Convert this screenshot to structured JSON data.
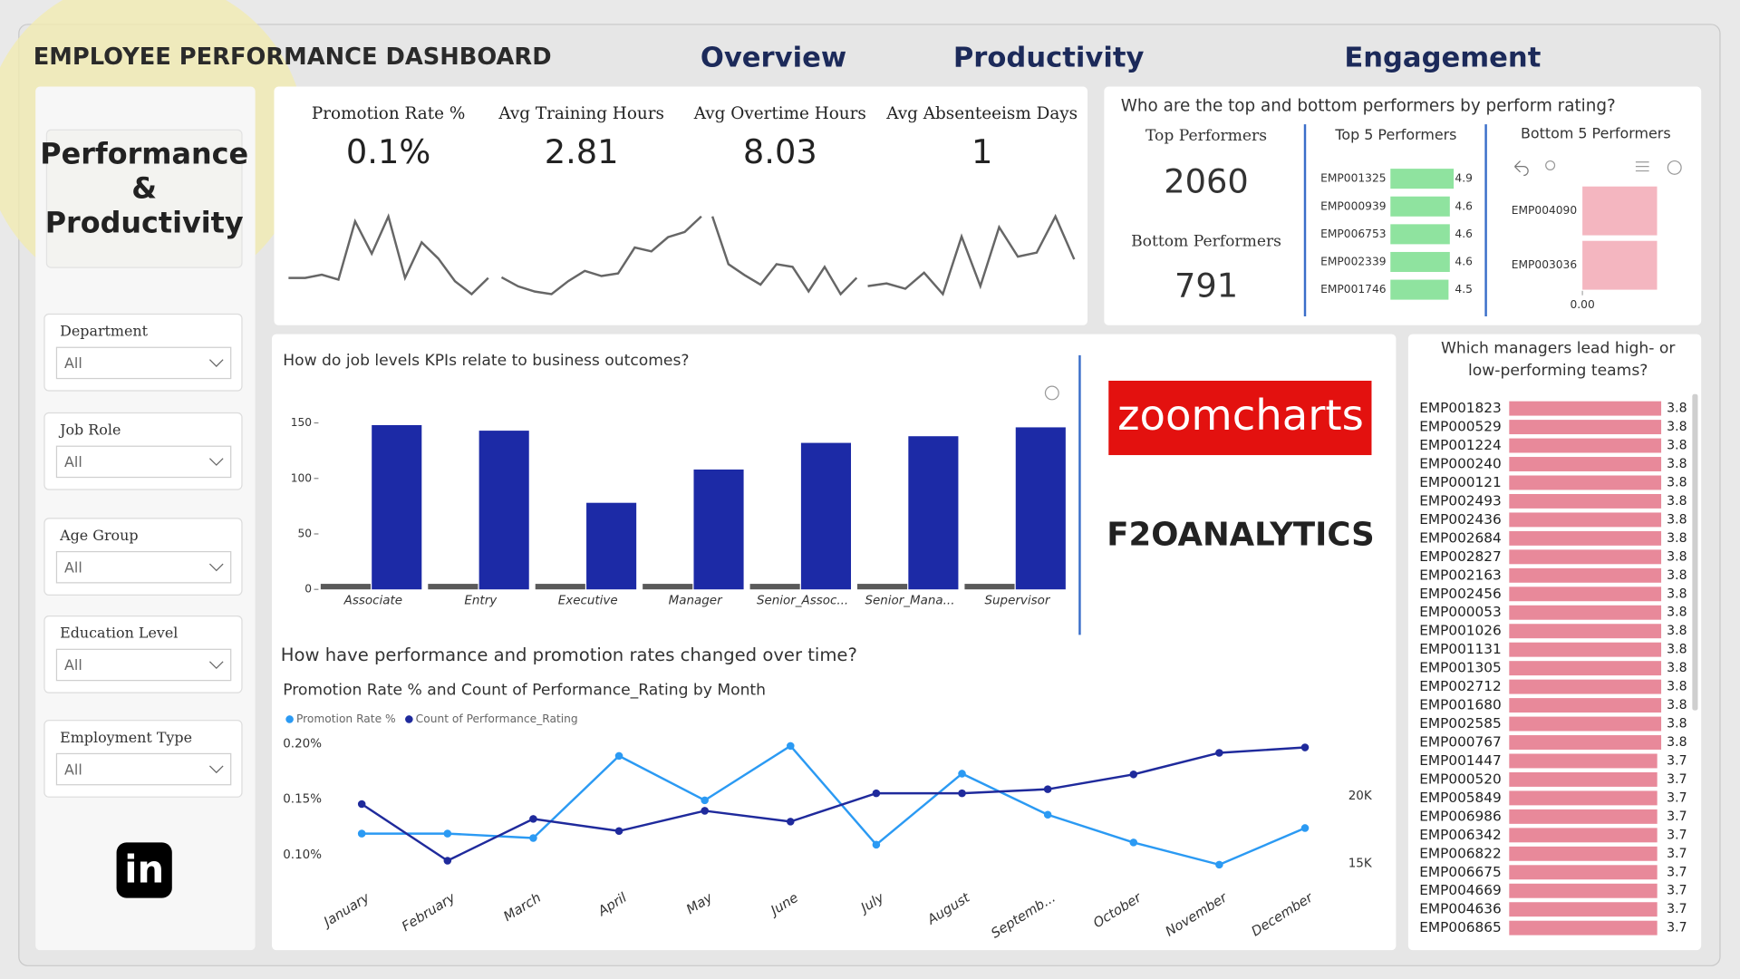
{
  "header": {
    "title": "EMPLOYEE PERFORMANCE DASHBOARD",
    "nav": [
      "Overview",
      "Productivity",
      "Engagement"
    ]
  },
  "sidebar": {
    "title_lines": [
      "Performance",
      "&",
      "Productivity"
    ],
    "filters": [
      {
        "label": "Department",
        "value": "All"
      },
      {
        "label": "Job Role",
        "value": "All"
      },
      {
        "label": "Age Group",
        "value": "All"
      },
      {
        "label": "Education Level",
        "value": "All"
      },
      {
        "label": "Employment Type",
        "value": "All"
      }
    ]
  },
  "kpis": [
    {
      "label": "Promotion Rate %",
      "value": "0.1%",
      "trend": [
        20,
        20,
        22,
        19,
        55,
        35,
        58,
        20,
        42,
        32,
        18,
        10,
        20
      ]
    },
    {
      "label": "Avg Training Hours",
      "value": "2.81",
      "trend": [
        25,
        18,
        14,
        12,
        22,
        30,
        26,
        28,
        48,
        45,
        56,
        60,
        72
      ]
    },
    {
      "label": "Avg Overtime Hours",
      "value": "8.03",
      "trend": [
        65,
        30,
        22,
        15,
        30,
        28,
        10,
        28,
        8,
        20
      ]
    },
    {
      "label": "Avg Absenteeism Days",
      "value": "1",
      "trend": [
        8,
        10,
        6,
        18,
        2,
        45,
        8,
        52,
        30,
        33,
        60,
        28
      ]
    }
  ],
  "performers": {
    "question": "Who are the top and bottom performers by perform rating?",
    "top_label": "Top Performers",
    "top_count": "2060",
    "bottom_label": "Bottom Performers",
    "bottom_count": "791",
    "top5": {
      "type": "bar",
      "title": "Top 5 Performers",
      "categories": [
        "EMP001325",
        "EMP000939",
        "EMP006753",
        "EMP002339",
        "EMP001746"
      ],
      "values": [
        4.9,
        4.6,
        4.6,
        4.6,
        4.5
      ],
      "color": "#8fe39f"
    },
    "bottom5": {
      "type": "bar",
      "title": "Bottom 5 Performers",
      "categories": [
        "EMP004090",
        "EMP003036"
      ],
      "values": [
        1,
        1
      ],
      "color": "#f4b6c0",
      "xlim": [
        0,
        1.1
      ],
      "xticks": [
        {
          "value": 0,
          "label": "0.00"
        }
      ]
    }
  },
  "job_levels": {
    "type": "bar",
    "question": "How do job levels KPIs relate to business outcomes?",
    "categories": [
      "Associate",
      "Entry",
      "Executive",
      "Manager",
      "Senior_Assoc...",
      "Senior_Mana...",
      "Supervisor"
    ],
    "series": [
      {
        "color": "#5a5a5a",
        "values": [
          5,
          5,
          5,
          5,
          5,
          5,
          5
        ]
      },
      {
        "color": "#1c2aa6",
        "values": [
          148,
          143,
          78,
          108,
          132,
          138,
          146
        ]
      }
    ],
    "ylim": [
      0,
      155
    ],
    "yticks": [
      0,
      50,
      100,
      150
    ]
  },
  "trend": {
    "type": "line",
    "question": "How have performance and promotion rates changed over time?",
    "title": "Promotion Rate % and Count of Performance_Rating by Month",
    "categories": [
      "January",
      "February",
      "March",
      "April",
      "May",
      "June",
      "July",
      "August",
      "Septemb...",
      "October",
      "November",
      "December"
    ],
    "series": [
      {
        "name": "Promotion Rate %",
        "color": "#2b9af3",
        "values": [
          0.119,
          0.119,
          0.115,
          0.189,
          0.149,
          0.198,
          0.109,
          0.173,
          0.136,
          0.111,
          0.091,
          0.124
        ]
      },
      {
        "name": "Count of Performance_Rating",
        "color": "#1f2a9c",
        "axis": "y2",
        "values": [
          19400,
          15200,
          18300,
          17400,
          18900,
          18100,
          20200,
          20200,
          20500,
          21600,
          23200,
          23600
        ]
      }
    ],
    "ylim": [
      0.08,
      0.21
    ],
    "yticks": [
      {
        "value": 0.1,
        "label": "0.10%"
      },
      {
        "value": 0.15,
        "label": "0.15%"
      },
      {
        "value": 0.2,
        "label": "0.20%"
      }
    ],
    "y2lim": [
      14000,
      24700
    ],
    "y2ticks": [
      {
        "value": 15000,
        "label": "15K"
      },
      {
        "value": 20000,
        "label": "20K"
      }
    ]
  },
  "logos": [
    "zoomcharts",
    "F2OANALYTICS"
  ],
  "managers": {
    "type": "bar",
    "question": "Which managers lead high- or low-performing teams?",
    "categories": [
      "EMP001823",
      "EMP000529",
      "EMP001224",
      "EMP000240",
      "EMP000121",
      "EMP002493",
      "EMP002436",
      "EMP002684",
      "EMP002827",
      "EMP002163",
      "EMP002456",
      "EMP000053",
      "EMP001026",
      "EMP001131",
      "EMP001305",
      "EMP002712",
      "EMP001680",
      "EMP002585",
      "EMP000767",
      "EMP001447",
      "EMP000520",
      "EMP005849",
      "EMP006986",
      "EMP006342",
      "EMP006822",
      "EMP006675",
      "EMP004669",
      "EMP004636",
      "EMP006865"
    ],
    "values": [
      3.8,
      3.8,
      3.8,
      3.8,
      3.8,
      3.8,
      3.8,
      3.8,
      3.8,
      3.8,
      3.8,
      3.8,
      3.8,
      3.8,
      3.8,
      3.8,
      3.8,
      3.8,
      3.8,
      3.7,
      3.7,
      3.7,
      3.7,
      3.7,
      3.7,
      3.7,
      3.7,
      3.7,
      3.7
    ],
    "color": "#e8899a"
  }
}
